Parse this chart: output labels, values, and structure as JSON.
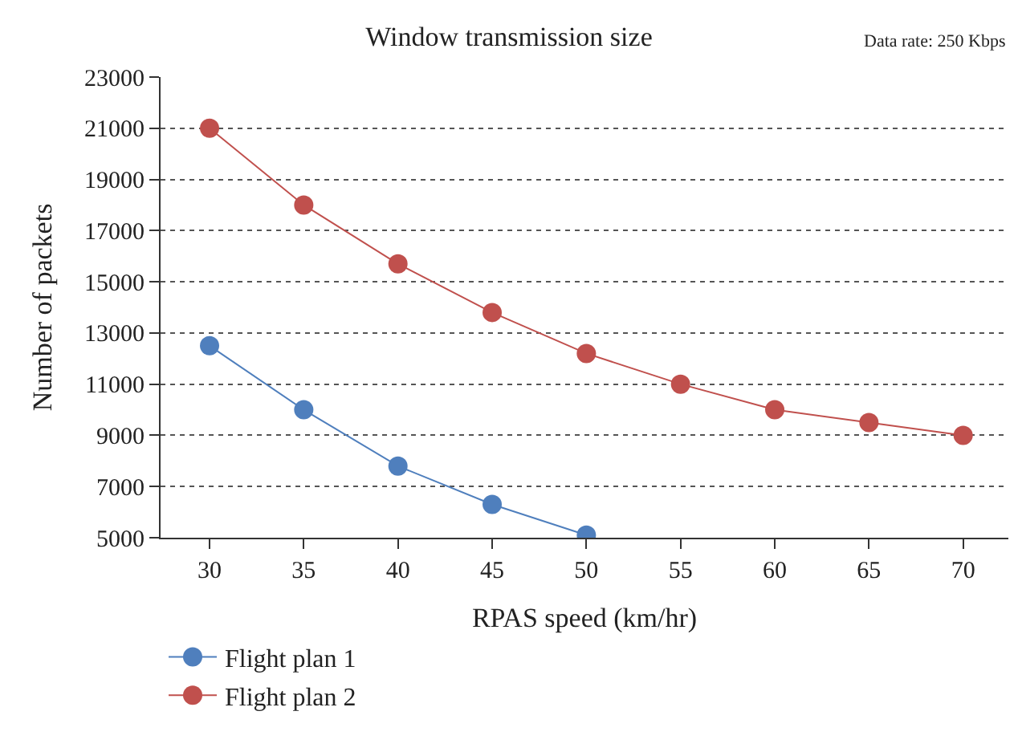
{
  "chart_data": {
    "type": "line",
    "title": "Window transmission size",
    "annotations": [
      "Data rate: 250 Kbps"
    ],
    "xlabel": "RPAS speed (km/hr)",
    "ylabel": "Number of packets",
    "x": [
      30,
      35,
      40,
      45,
      50,
      55,
      60,
      65,
      70
    ],
    "series": [
      {
        "name": "Flight plan 1",
        "color": "#4f7fbd",
        "values": [
          12500,
          10000,
          7800,
          6300,
          5100,
          null,
          null,
          null,
          null
        ]
      },
      {
        "name": "Flight plan 2",
        "color": "#c0504d",
        "values": [
          21000,
          18000,
          15700,
          13800,
          12200,
          11000,
          10000,
          9500,
          9000
        ]
      }
    ],
    "xlim": [
      27.4,
      72.4
    ],
    "xticks": [
      30,
      35,
      40,
      45,
      50,
      55,
      60,
      65,
      70
    ],
    "ylim": [
      5000,
      23000
    ],
    "yticks": [
      5000,
      7000,
      9000,
      11000,
      13000,
      15000,
      17000,
      19000,
      21000,
      23000
    ],
    "grid": "y",
    "legend": "bottom left",
    "marker": "circle",
    "line_style": "solid"
  }
}
